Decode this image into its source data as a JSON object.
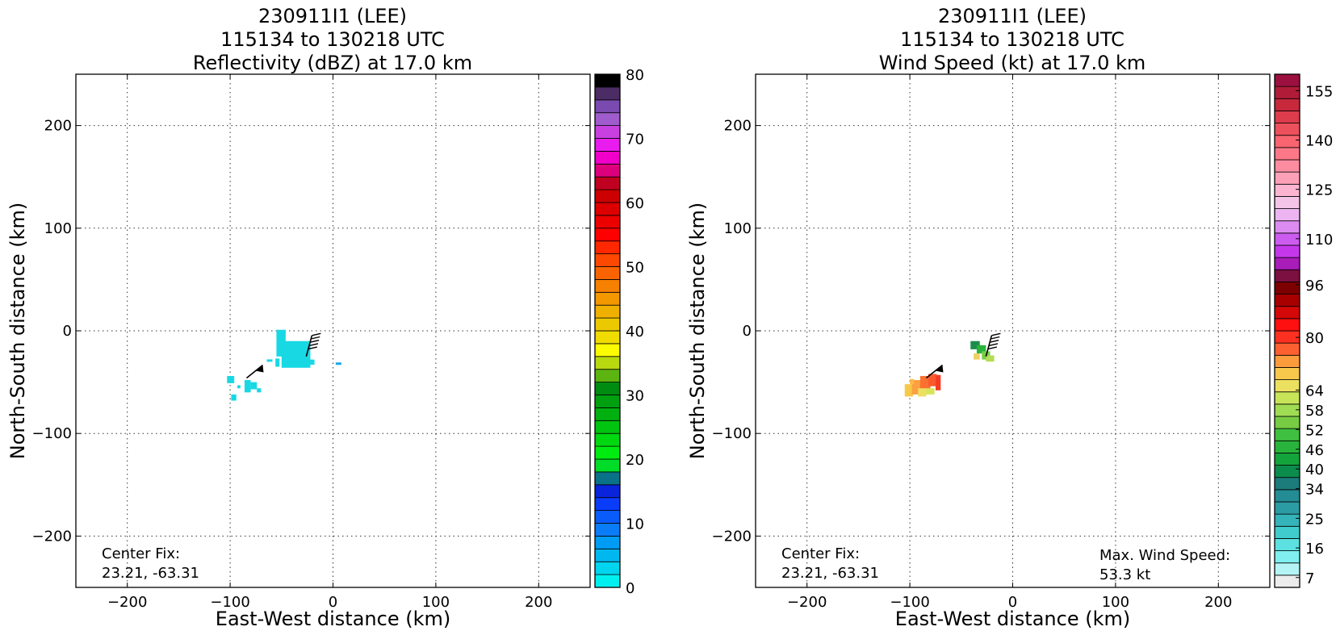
{
  "chart_data": [
    {
      "type": "heatmap",
      "title_lines": [
        "230911I1 (LEE)",
        "115134 to 130218 UTC",
        "Reflectivity (dBZ) at 17.0 km"
      ],
      "xlabel": "East-West distance (km)",
      "ylabel": "North-South distance (km)",
      "xlim": [
        -250,
        250
      ],
      "ylim": [
        -250,
        250
      ],
      "x_ticks": [
        -200,
        -100,
        0,
        100,
        200
      ],
      "y_ticks": [
        -200,
        -100,
        0,
        100,
        200
      ],
      "grid": true,
      "colorbar": {
        "min": 0,
        "max": 80,
        "tick_values": [
          0,
          10,
          20,
          30,
          40,
          50,
          60,
          70,
          80
        ],
        "tick_labels": [
          "0",
          "10",
          "20",
          "30",
          "40",
          "50",
          "60",
          "70",
          "80"
        ],
        "colors": [
          "#00f0f0",
          "#00d4ee",
          "#00b8f0",
          "#009cf4",
          "#0a7cf8",
          "#0a5cfa",
          "#0a3cfc",
          "#0a24dc",
          "#0a7288",
          "#00dc28",
          "#00ec10",
          "#00d810",
          "#00c410",
          "#00b010",
          "#00a010",
          "#008c10",
          "#5cb410",
          "#b8d810",
          "#fcfc00",
          "#f0dc00",
          "#ecc800",
          "#f0b000",
          "#f49800",
          "#f68000",
          "#fa6400",
          "#fc4800",
          "#ff2800",
          "#ff0000",
          "#ec0000",
          "#dc0000",
          "#cc0000",
          "#c00020",
          "#dc007c",
          "#f000c8",
          "#e81cec",
          "#c840e0",
          "#a05ccc",
          "#7a4ab0",
          "#4c2c64",
          "#000000"
        ]
      },
      "annotation": {
        "label": "Center Fix:",
        "value": "23.21, -63.31"
      },
      "echo_color": "#18d8e4",
      "echo_patches": [
        {
          "x": [
            -55,
            -46
          ],
          "y": [
            -25,
            1
          ]
        },
        {
          "x": [
            -56,
            -52
          ],
          "y": [
            -35,
            -27
          ]
        },
        {
          "x": [
            -50,
            -22
          ],
          "y": [
            -36,
            -10
          ]
        },
        {
          "x": [
            -23,
            -18
          ],
          "y": [
            -33,
            -28
          ]
        },
        {
          "x": [
            -103,
            -96
          ],
          "y": [
            -51,
            -44
          ]
        },
        {
          "x": [
            -99,
            -94
          ],
          "y": [
            -68,
            -62
          ]
        },
        {
          "x": [
            -86,
            -80
          ],
          "y": [
            -60,
            -48
          ]
        },
        {
          "x": [
            -80,
            -74
          ],
          "y": [
            -57,
            -50
          ]
        },
        {
          "x": [
            -93,
            -90
          ],
          "y": [
            -56,
            -53
          ]
        },
        {
          "x": [
            -74,
            -70
          ],
          "y": [
            -60,
            -56
          ]
        }
      ],
      "echo_dots": [
        {
          "x": 5,
          "y": -32,
          "color": "#1aa8e8"
        },
        {
          "x": -62,
          "y": -29,
          "color": "#18d8e4"
        }
      ],
      "wind_barbs": [
        {
          "x": -84,
          "y": -46,
          "kind": "flag"
        },
        {
          "x": -26,
          "y": -25,
          "kind": "barbs"
        }
      ]
    },
    {
      "type": "heatmap",
      "title_lines": [
        "230911I1 (LEE)",
        "115134 to 130218 UTC",
        "Wind Speed (kt) at 17.0 km"
      ],
      "xlabel": "East-West distance (km)",
      "ylabel": "North-South distance (km)",
      "xlim": [
        -250,
        250
      ],
      "ylim": [
        -250,
        250
      ],
      "x_ticks": [
        -200,
        -100,
        0,
        100,
        200
      ],
      "y_ticks": [
        -200,
        -100,
        0,
        100,
        200
      ],
      "grid": true,
      "colorbar": {
        "min": 4,
        "max": 160,
        "tick_values": [
          7,
          16,
          25,
          34,
          40,
          46,
          52,
          58,
          64,
          80,
          96,
          110,
          125,
          140,
          155
        ],
        "tick_labels": [
          "7",
          "16",
          "25",
          "34",
          "40",
          "46",
          "52",
          "58",
          "64",
          "80",
          "96",
          "110",
          "125",
          "140",
          "155"
        ],
        "colors": [
          "#ececec",
          "#b4f4f4",
          "#80eeee",
          "#5ce0e0",
          "#40cccc",
          "#34b4b8",
          "#2c9ca4",
          "#248c94",
          "#1c7c7c",
          "#0c8c4c",
          "#14a43c",
          "#28b43c",
          "#40c040",
          "#78cc44",
          "#a0dc54",
          "#c8e458",
          "#ece060",
          "#f8c84c",
          "#fc9c3c",
          "#fc6030",
          "#fc3020",
          "#fc1010",
          "#d40808",
          "#a80000",
          "#7c0000",
          "#7c1040",
          "#a81cb8",
          "#c438ec",
          "#cc5cf0",
          "#dc8cf0",
          "#ecb4f0",
          "#f4c4e8",
          "#fcb4d0",
          "#fca0b8",
          "#fc8ca0",
          "#fc7888",
          "#f86470",
          "#ec505c",
          "#dc3c4c",
          "#c8283c",
          "#b01c38",
          "#9c1040"
        ]
      },
      "annotation": {
        "label": "Center Fix:",
        "value": "23.21, -63.31"
      },
      "max_label": {
        "label": "Max. Wind Speed:",
        "value": "53.3 kt"
      },
      "wind_patches": [
        {
          "x": [
            -105,
            -97
          ],
          "y": [
            -64,
            -52
          ],
          "color": "#f8c848"
        },
        {
          "x": [
            -98,
            -88
          ],
          "y": [
            -62,
            -48
          ],
          "color": "#fca040"
        },
        {
          "x": [
            -90,
            -80
          ],
          "y": [
            -58,
            -44
          ],
          "color": "#fc7030"
        },
        {
          "x": [
            -82,
            -74
          ],
          "y": [
            -54,
            -42
          ],
          "color": "#fc5a2c"
        },
        {
          "x": [
            -75,
            -70
          ],
          "y": [
            -58,
            -43
          ],
          "color": "#f43c24"
        },
        {
          "x": [
            -92,
            -84
          ],
          "y": [
            -64,
            -56
          ],
          "color": "#ece060"
        },
        {
          "x": [
            -84,
            -76
          ],
          "y": [
            -62,
            -56
          ],
          "color": "#d8e458"
        },
        {
          "x": [
            -100,
            -96
          ],
          "y": [
            -52,
            -47
          ],
          "color": "#fcb848"
        },
        {
          "x": [
            -41,
            -32
          ],
          "y": [
            -18,
            -10
          ],
          "color": "#1c8c4c"
        },
        {
          "x": [
            -35,
            -26
          ],
          "y": [
            -22,
            -14
          ],
          "color": "#28b43c"
        },
        {
          "x": [
            -30,
            -22
          ],
          "y": [
            -28,
            -20
          ],
          "color": "#78cc44"
        },
        {
          "x": [
            -26,
            -18
          ],
          "y": [
            -30,
            -24
          ],
          "color": "#b4dc54"
        },
        {
          "x": [
            -38,
            -32
          ],
          "y": [
            -28,
            -22
          ],
          "color": "#f0d060"
        }
      ],
      "wind_barbs": [
        {
          "x": -84,
          "y": -46,
          "kind": "flag"
        },
        {
          "x": -26,
          "y": -25,
          "kind": "barbs"
        }
      ]
    }
  ]
}
